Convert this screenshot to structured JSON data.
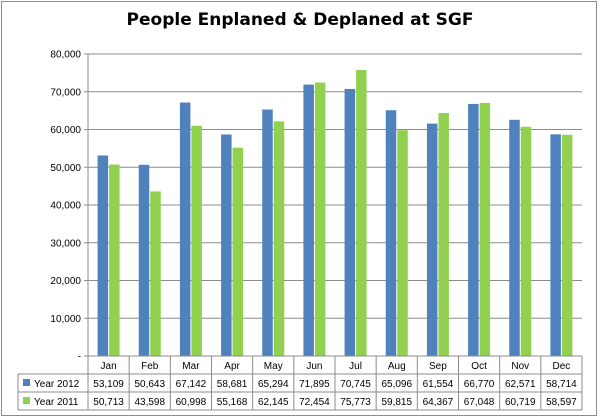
{
  "chart_data": {
    "type": "bar",
    "title": "People Enplaned & Deplaned at SGF",
    "xlabel": "",
    "ylabel": "",
    "ylim": [
      0,
      80000
    ],
    "yticks": [
      0,
      10000,
      20000,
      30000,
      40000,
      50000,
      60000,
      70000,
      80000
    ],
    "ytick_labels": [
      "-",
      "10,000",
      "20,000",
      "30,000",
      "40,000",
      "50,000",
      "60,000",
      "70,000",
      "80,000"
    ],
    "grid": true,
    "legend_placement": "data-table",
    "categories": [
      "Jan",
      "Feb",
      "Mar",
      "Apr",
      "May",
      "Jun",
      "Jul",
      "Aug",
      "Sep",
      "Oct",
      "Nov",
      "Dec"
    ],
    "series": [
      {
        "name": "Year 2012",
        "color": "#4f81bd",
        "values": [
          53109,
          50643,
          67142,
          58681,
          65294,
          71895,
          70745,
          65096,
          61554,
          66770,
          62571,
          58714
        ],
        "labels": [
          "53,109",
          "50,643",
          "67,142",
          "58,681",
          "65,294",
          "71,895",
          "70,745",
          "65,096",
          "61,554",
          "66,770",
          "62,571",
          "58,714"
        ]
      },
      {
        "name": "Year 2011",
        "color": "#92d050",
        "values": [
          50713,
          43598,
          60998,
          55168,
          62145,
          72454,
          75773,
          59815,
          64367,
          67048,
          60719,
          58597
        ],
        "labels": [
          "50,713",
          "43,598",
          "60,998",
          "55,168",
          "62,145",
          "72,454",
          "75,773",
          "59,815",
          "64,367",
          "67,048",
          "60,719",
          "58,597"
        ]
      }
    ]
  }
}
